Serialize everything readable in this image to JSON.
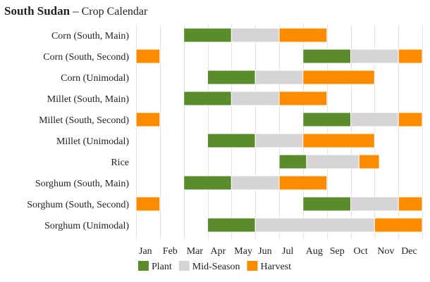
{
  "title": {
    "country": "South Sudan",
    "separator": "–",
    "subtitle": "Crop Calendar"
  },
  "colors": {
    "plant": "#5a8c2b",
    "mid_season": "#d6d4d6",
    "harvest": "#fb8c00",
    "grid": "#e2e2e2"
  },
  "chart_data": {
    "type": "gantt",
    "title": "South Sudan – Crop Calendar",
    "months": [
      "Jan",
      "Feb",
      "Mar",
      "Apr",
      "May",
      "Jun",
      "Jul",
      "Aug",
      "Sep",
      "Oct",
      "Nov",
      "Dec"
    ],
    "legend": [
      {
        "key": "plant",
        "label": "Plant"
      },
      {
        "key": "mid_season",
        "label": "Mid-Season"
      },
      {
        "key": "harvest",
        "label": "Harvest"
      }
    ],
    "legend_position": "bottom-left",
    "grid": true,
    "crops": [
      {
        "name": "Corn (South, Main)",
        "segments": [
          {
            "phase": "plant",
            "start": 3.0,
            "end": 5.0
          },
          {
            "phase": "mid_season",
            "start": 5.0,
            "end": 7.0
          },
          {
            "phase": "harvest",
            "start": 7.0,
            "end": 9.0
          }
        ]
      },
      {
        "name": "Corn (South, Second)",
        "segments": [
          {
            "phase": "harvest",
            "start": 1.0,
            "end": 2.0
          },
          {
            "phase": "plant",
            "start": 8.0,
            "end": 10.0
          },
          {
            "phase": "mid_season",
            "start": 10.0,
            "end": 12.0
          },
          {
            "phase": "harvest",
            "start": 12.0,
            "end": 13.0
          }
        ]
      },
      {
        "name": "Corn (Unimodal)",
        "segments": [
          {
            "phase": "plant",
            "start": 4.0,
            "end": 6.0
          },
          {
            "phase": "mid_season",
            "start": 6.0,
            "end": 8.0
          },
          {
            "phase": "harvest",
            "start": 8.0,
            "end": 11.0
          }
        ]
      },
      {
        "name": "Millet (South, Main)",
        "segments": [
          {
            "phase": "plant",
            "start": 3.0,
            "end": 5.0
          },
          {
            "phase": "mid_season",
            "start": 5.0,
            "end": 7.0
          },
          {
            "phase": "harvest",
            "start": 7.0,
            "end": 9.0
          }
        ]
      },
      {
        "name": "Millet (South, Second)",
        "segments": [
          {
            "phase": "harvest",
            "start": 1.0,
            "end": 2.0
          },
          {
            "phase": "plant",
            "start": 8.0,
            "end": 10.0
          },
          {
            "phase": "mid_season",
            "start": 10.0,
            "end": 12.0
          },
          {
            "phase": "harvest",
            "start": 12.0,
            "end": 13.0
          }
        ]
      },
      {
        "name": "Millet (Unimodal)",
        "segments": [
          {
            "phase": "plant",
            "start": 4.0,
            "end": 6.0
          },
          {
            "phase": "mid_season",
            "start": 6.0,
            "end": 8.0
          },
          {
            "phase": "harvest",
            "start": 8.0,
            "end": 11.0
          }
        ]
      },
      {
        "name": "Rice",
        "segments": [
          {
            "phase": "plant",
            "start": 7.0,
            "end": 8.15
          },
          {
            "phase": "mid_season",
            "start": 8.15,
            "end": 10.35
          },
          {
            "phase": "harvest",
            "start": 10.35,
            "end": 11.2
          }
        ]
      },
      {
        "name": "Sorghum (South, Main)",
        "segments": [
          {
            "phase": "plant",
            "start": 3.0,
            "end": 5.0
          },
          {
            "phase": "mid_season",
            "start": 5.0,
            "end": 7.0
          },
          {
            "phase": "harvest",
            "start": 7.0,
            "end": 9.0
          }
        ]
      },
      {
        "name": "Sorghum (South, Second)",
        "segments": [
          {
            "phase": "harvest",
            "start": 1.0,
            "end": 2.0
          },
          {
            "phase": "plant",
            "start": 8.0,
            "end": 10.0
          },
          {
            "phase": "mid_season",
            "start": 10.0,
            "end": 12.0
          },
          {
            "phase": "harvest",
            "start": 12.0,
            "end": 13.0
          }
        ]
      },
      {
        "name": "Sorghum (Unimodal)",
        "segments": [
          {
            "phase": "plant",
            "start": 4.0,
            "end": 6.0
          },
          {
            "phase": "mid_season",
            "start": 6.0,
            "end": 11.0
          },
          {
            "phase": "harvest",
            "start": 11.0,
            "end": 13.0
          }
        ]
      }
    ]
  }
}
